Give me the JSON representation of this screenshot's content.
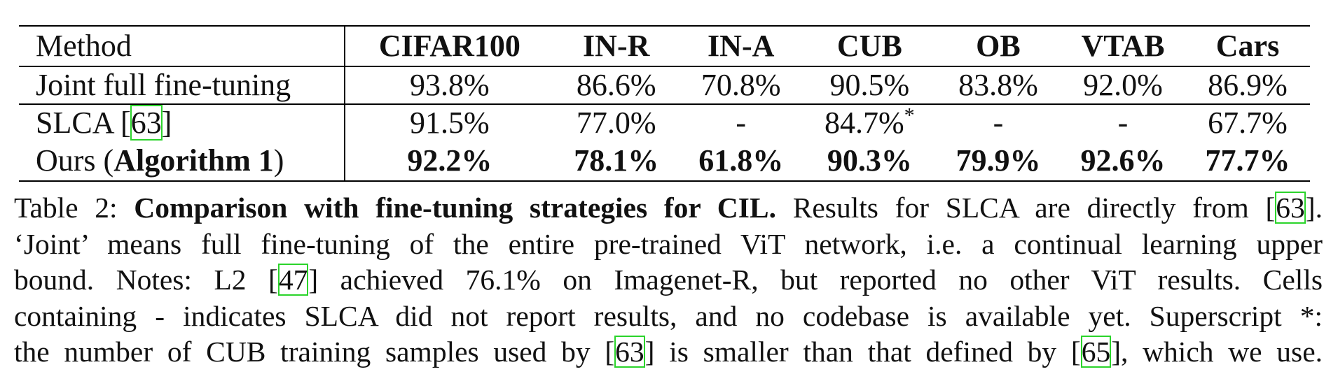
{
  "table": {
    "columns": [
      "Method",
      "CIFAR100",
      "IN-R",
      "IN-A",
      "CUB",
      "OB",
      "VTAB",
      "Cars"
    ],
    "rows": [
      {
        "method": "Joint full fine-tuning",
        "values": [
          "93.8%",
          "86.6%",
          "70.8%",
          "90.5%",
          "83.8%",
          "92.0%",
          "86.9%"
        ]
      },
      {
        "method_text": "SLCA [",
        "method_ref": "63",
        "method_close": "]",
        "values": [
          "91.5%",
          "77.0%",
          "-",
          "84.7%",
          "-",
          "-",
          "67.7%"
        ],
        "cub_superscript": "*"
      },
      {
        "method_text": "Ours (",
        "method_bold": "Algorithm 1",
        "method_close": ")",
        "values": [
          "92.2%",
          "78.1%",
          "61.8%",
          "90.3%",
          "79.9%",
          "92.6%",
          "77.7%"
        ]
      }
    ]
  },
  "caption": {
    "label": "Table 2:",
    "title": "Comparison with fine-tuning strategies for CIL.",
    "line1_rest": "Results for SLCA are directly from [",
    "line1_ref": "63",
    "line1_end": "].",
    "line2": "‘Joint’ means full fine-tuning of the entire pre-trained ViT network, i.e. a continual learning upper",
    "line3_a": "bound.  Notes: L2 [",
    "line3_ref": "47",
    "line3_b": "] achieved 76.1% on Imagenet-R, but reported no other ViT results.  Cells",
    "line4": "containing - indicates SLCA did not report results, and no codebase is available yet. Superscript *:",
    "line5_a": "the number of CUB training samples used by [",
    "line5_ref1": "63",
    "line5_b": "] is smaller than that defined by [",
    "line5_ref2": "65",
    "line5_c": "], which we use."
  }
}
